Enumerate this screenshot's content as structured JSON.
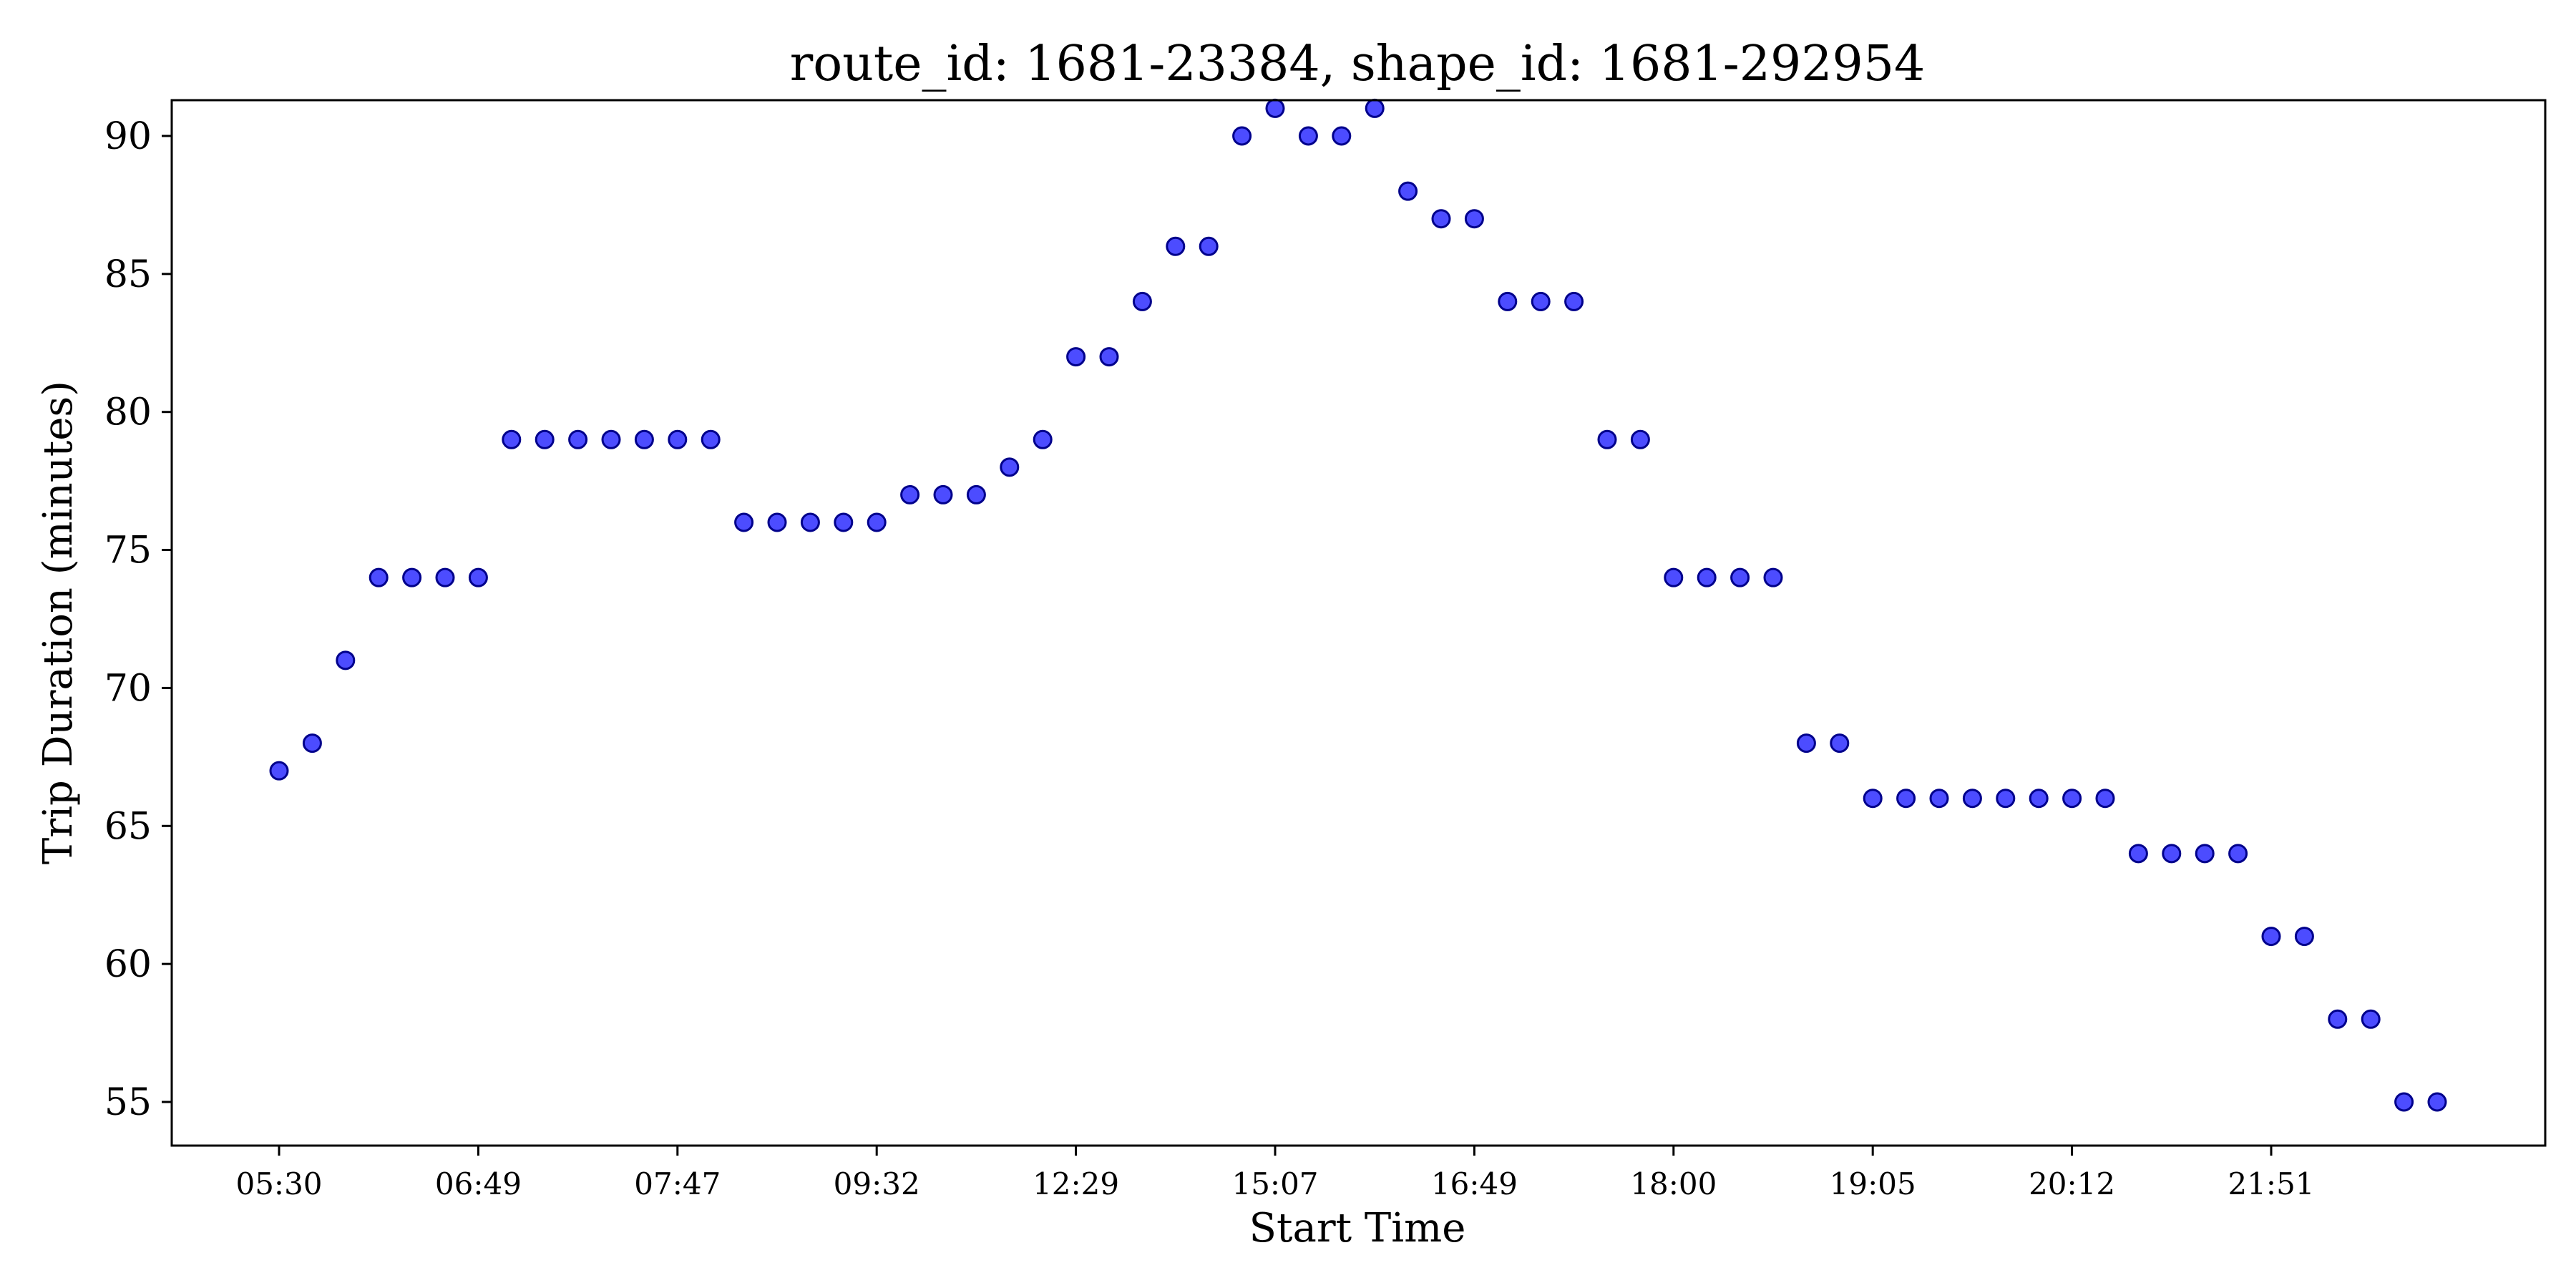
{
  "chart_data": {
    "type": "scatter",
    "title": "route_id: 1681-23384, shape_id: 1681-292954",
    "xlabel": "Start Time",
    "ylabel": "Trip Duration (minutes)",
    "ylim": [
      53,
      93
    ],
    "yticks": [
      55,
      60,
      65,
      70,
      75,
      80,
      85,
      90
    ],
    "xticks": [
      "05:30",
      "06:49",
      "07:47",
      "09:32",
      "12:29",
      "15:07",
      "16:49",
      "18:00",
      "19:05",
      "20:12",
      "21:51"
    ],
    "xtick_every": 6,
    "grid": false,
    "legend": "none",
    "marker_color": "#0000ff",
    "marker_edge_color": "#00008b",
    "values": [
      67,
      68,
      71,
      74,
      74,
      74,
      74,
      79,
      79,
      79,
      79,
      79,
      79,
      79,
      76,
      76,
      76,
      76,
      76,
      77,
      77,
      77,
      78,
      79,
      82,
      82,
      84,
      86,
      86,
      90,
      91,
      90,
      90,
      91,
      88,
      87,
      87,
      84,
      84,
      84,
      79,
      79,
      74,
      74,
      74,
      74,
      68,
      68,
      66,
      66,
      66,
      66,
      66,
      66,
      66,
      66,
      64,
      64,
      64,
      64,
      61,
      61,
      58,
      58,
      55,
      55
    ]
  }
}
